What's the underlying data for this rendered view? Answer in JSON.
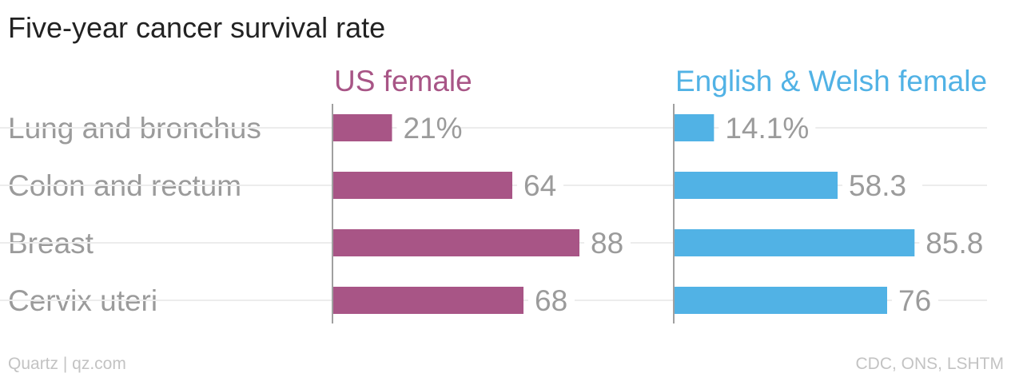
{
  "title": "Five-year cancer survival rate",
  "source_left": "Quartz | qz.com",
  "source_right": "CDC, ONS, LSHTM",
  "chart_data": {
    "type": "bar",
    "orientation": "horizontal",
    "title": "Five-year cancer survival rate",
    "categories": [
      "Lung and bronchus",
      "Colon and rectum",
      "Breast",
      "Cervix uteri"
    ],
    "series": [
      {
        "name": "US female",
        "values": [
          21,
          64,
          88,
          68
        ],
        "labels": [
          "21%",
          "64",
          "88",
          "68"
        ],
        "color": "#a85586"
      },
      {
        "name": "English & Welsh female",
        "values": [
          14.1,
          58.3,
          85.8,
          76
        ],
        "labels": [
          "14.1%",
          "58.3",
          "85.8",
          "76"
        ],
        "color": "#51b2e5"
      }
    ],
    "xlim": [
      0,
      100
    ],
    "layout": "small-multiples",
    "grid": true
  }
}
